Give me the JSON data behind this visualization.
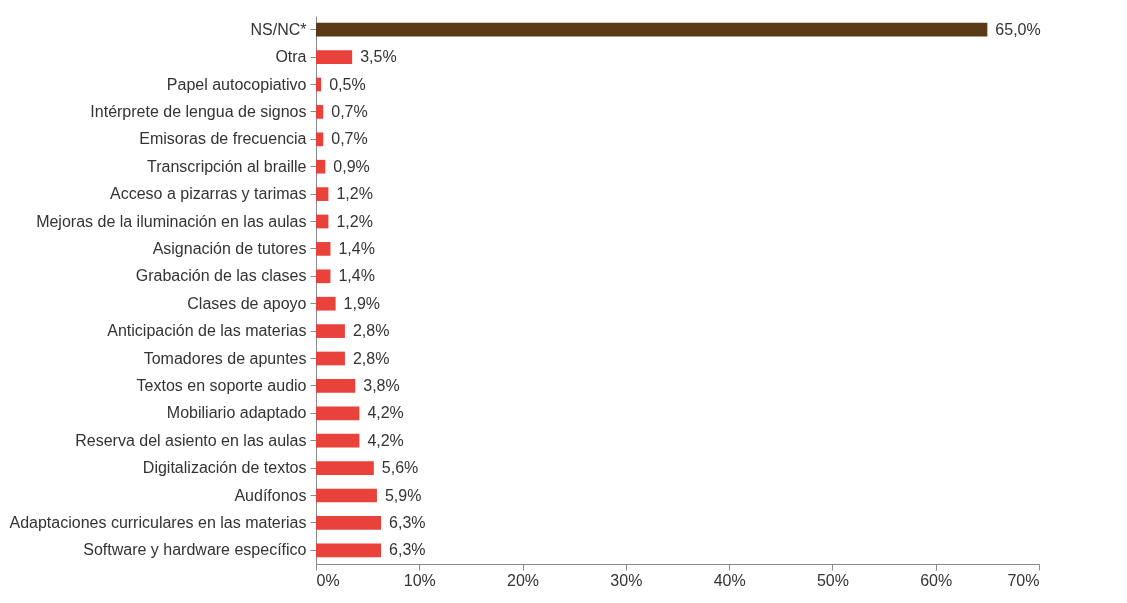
{
  "chart_data": {
    "type": "bar",
    "orientation": "horizontal",
    "categories": [
      "NS/NC*",
      "Otra",
      "Papel autocopiativo",
      "Intérprete de lengua de signos",
      "Emisoras de frecuencia",
      "Transcripción al braille",
      "Acceso a pizarras y tarimas",
      "Mejoras de la iluminación en las aulas",
      "Asignación de tutores",
      "Grabación de las clases",
      "Clases de apoyo",
      "Anticipación de las materias",
      "Tomadores de apuntes",
      "Textos en soporte audio",
      "Mobiliario adaptado",
      "Reserva del asiento en las aulas",
      "Digitalización de textos",
      "Audífonos",
      "Adaptaciones curriculares en las materias",
      "Software y hardware específico"
    ],
    "values": [
      65.0,
      3.5,
      0.5,
      0.7,
      0.7,
      0.9,
      1.2,
      1.2,
      1.4,
      1.4,
      1.9,
      2.8,
      2.8,
      3.8,
      4.2,
      4.2,
      5.6,
      5.9,
      6.3,
      6.3
    ],
    "value_labels": [
      "65,0%",
      "3,5%",
      "0,5%",
      "0,7%",
      "0,7%",
      "0,9%",
      "1,2%",
      "1,2%",
      "1,4%",
      "1,4%",
      "1,9%",
      "2,8%",
      "2,8%",
      "3,8%",
      "4,2%",
      "4,2%",
      "5,6%",
      "5,9%",
      "6,3%",
      "6,3%"
    ],
    "colors": [
      "#5b3a16",
      "#e8423b",
      "#e8423b",
      "#e8423b",
      "#e8423b",
      "#e8423b",
      "#e8423b",
      "#e8423b",
      "#e8423b",
      "#e8423b",
      "#e8423b",
      "#e8423b",
      "#e8423b",
      "#e8423b",
      "#e8423b",
      "#e8423b",
      "#e8423b",
      "#e8423b",
      "#e8423b",
      "#e8423b"
    ],
    "xlim": [
      0,
      70
    ],
    "xticks": [
      {
        "value": 0,
        "label": "0%"
      },
      {
        "value": 10,
        "label": "10%"
      },
      {
        "value": 20,
        "label": "20%"
      },
      {
        "value": 30,
        "label": "30%"
      },
      {
        "value": 40,
        "label": "40%"
      },
      {
        "value": 50,
        "label": "50%"
      },
      {
        "value": 60,
        "label": "60%"
      },
      {
        "value": 70,
        "label": "70%"
      }
    ]
  }
}
